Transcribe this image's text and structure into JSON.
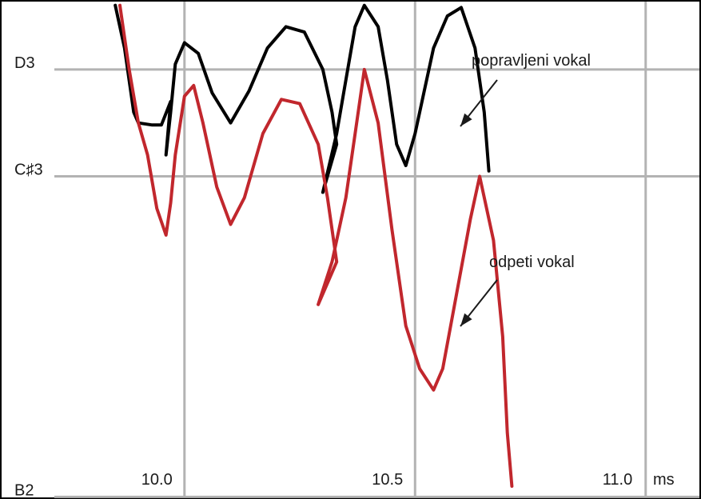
{
  "chart_data": {
    "type": "line",
    "title": "",
    "xlabel": "",
    "x_unit": "ms",
    "ylabel": "",
    "x_ticks": [
      {
        "value": 10.0,
        "label": "10.0"
      },
      {
        "value": 10.5,
        "label": "10.5"
      },
      {
        "value": 11.0,
        "label": "11.0"
      }
    ],
    "y_ticks": [
      {
        "value": 1,
        "label": "B2"
      },
      {
        "value": 4,
        "label": "C♯3"
      },
      {
        "value": 5,
        "label": "D3"
      }
    ],
    "xlim": [
      9.6,
      11.12
    ],
    "ylim": [
      0.98,
      5.65
    ],
    "grid": true,
    "series": [
      {
        "name": "popravljeni vokal",
        "color": "#000000",
        "points": [
          [
            9.85,
            5.6
          ],
          [
            9.87,
            5.2
          ],
          [
            9.89,
            4.6
          ],
          [
            9.9,
            4.5
          ],
          [
            9.93,
            4.48
          ],
          [
            9.95,
            4.48
          ],
          [
            9.97,
            4.7
          ],
          [
            9.96,
            4.2
          ],
          [
            9.97,
            4.6
          ],
          [
            9.98,
            5.05
          ],
          [
            10.0,
            5.25
          ],
          [
            10.03,
            5.15
          ],
          [
            10.06,
            4.78
          ],
          [
            10.1,
            4.5
          ],
          [
            10.14,
            4.8
          ],
          [
            10.18,
            5.2
          ],
          [
            10.22,
            5.4
          ],
          [
            10.26,
            5.35
          ],
          [
            10.3,
            5.0
          ],
          [
            10.32,
            4.6
          ],
          [
            10.33,
            4.3
          ],
          [
            10.3,
            3.85
          ],
          [
            10.33,
            4.4
          ],
          [
            10.35,
            4.9
          ],
          [
            10.37,
            5.4
          ],
          [
            10.39,
            5.6
          ],
          [
            10.42,
            5.4
          ],
          [
            10.44,
            4.9
          ],
          [
            10.46,
            4.3
          ],
          [
            10.48,
            4.1
          ],
          [
            10.5,
            4.4
          ],
          [
            10.52,
            4.8
          ],
          [
            10.54,
            5.2
          ],
          [
            10.57,
            5.5
          ],
          [
            10.6,
            5.58
          ],
          [
            10.63,
            5.2
          ],
          [
            10.65,
            4.6
          ],
          [
            10.66,
            4.05
          ]
        ]
      },
      {
        "name": "odpeti vokal",
        "color": "#c1272d",
        "points": [
          [
            9.86,
            5.6
          ],
          [
            9.88,
            5.0
          ],
          [
            9.9,
            4.5
          ],
          [
            9.92,
            4.2
          ],
          [
            9.94,
            3.7
          ],
          [
            9.96,
            3.45
          ],
          [
            9.97,
            3.75
          ],
          [
            9.98,
            4.2
          ],
          [
            10.0,
            4.75
          ],
          [
            10.02,
            4.85
          ],
          [
            10.04,
            4.5
          ],
          [
            10.07,
            3.9
          ],
          [
            10.1,
            3.55
          ],
          [
            10.13,
            3.8
          ],
          [
            10.17,
            4.4
          ],
          [
            10.21,
            4.72
          ],
          [
            10.25,
            4.68
          ],
          [
            10.29,
            4.3
          ],
          [
            10.31,
            3.8
          ],
          [
            10.33,
            3.2
          ],
          [
            10.29,
            2.8
          ],
          [
            10.32,
            3.2
          ],
          [
            10.35,
            3.8
          ],
          [
            10.37,
            4.4
          ],
          [
            10.39,
            5.0
          ],
          [
            10.42,
            4.5
          ],
          [
            10.45,
            3.5
          ],
          [
            10.48,
            2.6
          ],
          [
            10.51,
            2.2
          ],
          [
            10.54,
            2.0
          ],
          [
            10.56,
            2.2
          ],
          [
            10.59,
            2.9
          ],
          [
            10.62,
            3.6
          ],
          [
            10.64,
            4.0
          ],
          [
            10.67,
            3.4
          ],
          [
            10.69,
            2.5
          ],
          [
            10.7,
            1.6
          ],
          [
            10.71,
            1.1
          ]
        ]
      }
    ],
    "annotations": [
      {
        "text": "popravljeni vokal",
        "points_to": "popravljeni vokal"
      },
      {
        "text": "odpeti vokal",
        "points_to": "odpeti vokal"
      }
    ],
    "legend": "none"
  }
}
